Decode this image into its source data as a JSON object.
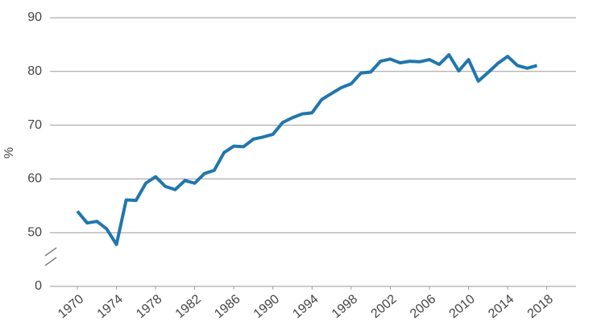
{
  "chart_data": {
    "type": "line",
    "y_label": "%",
    "x": [
      1970,
      1971,
      1972,
      1973,
      1974,
      1975,
      1976,
      1977,
      1978,
      1979,
      1980,
      1981,
      1982,
      1983,
      1984,
      1985,
      1986,
      1987,
      1988,
      1989,
      1990,
      1991,
      1992,
      1993,
      1994,
      1995,
      1996,
      1997,
      1998,
      1999,
      2000,
      2001,
      2002,
      2003,
      2004,
      2005,
      2006,
      2007,
      2008,
      2009,
      2010,
      2011,
      2012,
      2013,
      2014,
      2015,
      2016,
      2017
    ],
    "series": [
      {
        "color": "#2176ae",
        "values": [
          54,
          51.8,
          52.1,
          50.7,
          47.8,
          56.1,
          56,
          59.2,
          60.4,
          58.6,
          58,
          59.7,
          59.2,
          61,
          61.6,
          64.9,
          66.1,
          66,
          67.4,
          67.8,
          68.3,
          70.5,
          71.4,
          72.1,
          72.3,
          74.8,
          75.9,
          77,
          77.7,
          79.7,
          79.9,
          81.9,
          82.3,
          81.6,
          81.9,
          81.8,
          82.2,
          81.3,
          83.1,
          80.1,
          82.2,
          78.2,
          79.8,
          81.5,
          82.8,
          81.1,
          80.6,
          81.1
        ]
      }
    ],
    "xlim": [
      1967.2,
      2021
    ],
    "xticks": [
      1970,
      1974,
      1978,
      1982,
      1986,
      1990,
      1994,
      1998,
      2002,
      2006,
      2010,
      2014,
      2018
    ],
    "ylim": [
      0,
      90
    ],
    "axis_break": [
      0,
      40
    ],
    "yticks": [
      0,
      50,
      60,
      70,
      80,
      90
    ],
    "grid": true
  }
}
